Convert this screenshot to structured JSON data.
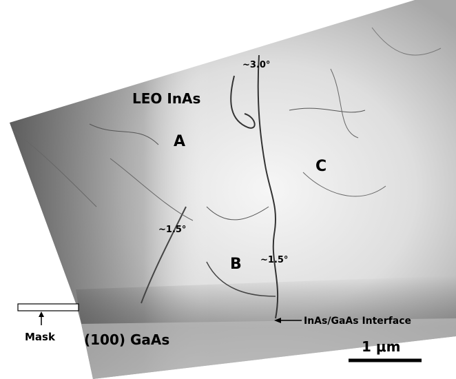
{
  "labels": {
    "angle_top": "~3.0°",
    "region_leo": "LEO InAs",
    "region_a": "A",
    "region_c": "C",
    "angle_left": "~1.5°",
    "region_b": "B",
    "angle_right": "~1.5°",
    "interface": "InAs/GaAs Interface",
    "mask": "Mask",
    "substrate": "(100) GaAs",
    "scale": "1 μm"
  }
}
